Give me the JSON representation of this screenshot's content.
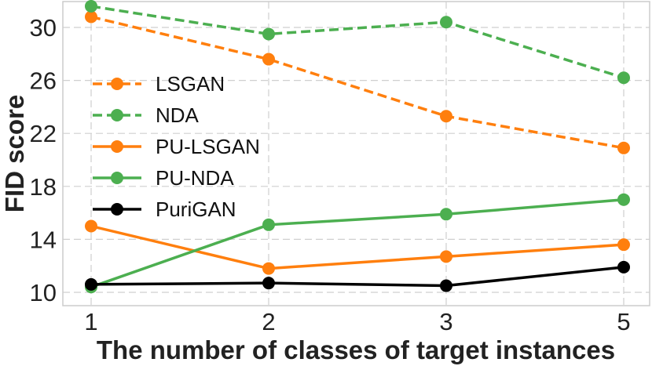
{
  "chart_data": {
    "type": "line",
    "title": "",
    "xlabel": "The number of classes of target instances",
    "ylabel": "FID score",
    "x": [
      1,
      2,
      3,
      5
    ],
    "x_ticks": [
      "1",
      "2",
      "3",
      "5"
    ],
    "y_ticks": [
      10,
      14,
      18,
      22,
      26,
      30
    ],
    "ylim": [
      9.6,
      32
    ],
    "grid": true,
    "legend_position": "center-left",
    "series": [
      {
        "name": "LSGAN",
        "color": "#ff7f0e",
        "dashed": true,
        "values": [
          30.8,
          27.6,
          23.3,
          20.9
        ]
      },
      {
        "name": "NDA",
        "color": "#4caf50",
        "dashed": true,
        "values": [
          31.6,
          29.5,
          30.4,
          26.2
        ]
      },
      {
        "name": "PU-LSGAN",
        "color": "#ff7f0e",
        "dashed": false,
        "values": [
          15.0,
          11.8,
          12.7,
          13.6
        ]
      },
      {
        "name": "PU-NDA",
        "color": "#4caf50",
        "dashed": false,
        "values": [
          10.4,
          15.1,
          15.9,
          17.0
        ]
      },
      {
        "name": "PuriGAN",
        "color": "#000000",
        "dashed": false,
        "values": [
          10.6,
          10.7,
          10.5,
          11.9
        ]
      }
    ]
  }
}
